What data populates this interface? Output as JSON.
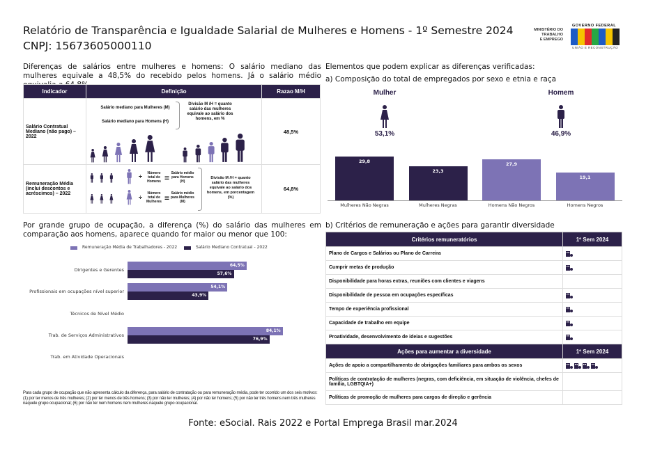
{
  "header": {
    "title": "Relatório de Transparência e Igualdade Salarial de Mulheres e Homens - 1º Semestre 2024",
    "cnpj": "CNPJ: 15673605000110",
    "logo": {
      "ministry_line1": "MINISTÉRIO DO",
      "ministry_line2": "TRABALHO",
      "ministry_line3": "E EMPREGO",
      "gov": "GOVERNO FEDERAL",
      "brand": "BRASIL",
      "tagline": "UNIÃO E RECONSTRUÇÃO"
    }
  },
  "colors": {
    "dark": "#2c2149",
    "light": "#7d73b5"
  },
  "left": {
    "intro": "Diferenças de salários entre mulheres e homens: O salário mediano das mulheres equivale a 48,5% do recebido pelos homens. Já o salário médio equivalia a 64,8%",
    "table": {
      "headers": [
        "Indicador",
        "Definição",
        "Razao M/H"
      ],
      "rows": [
        {
          "indicator": "Salário Contratual Mediano (não pago) – 2022",
          "def_a": "Salário mediano para Mulheres (M)",
          "def_b": "Salário mediano para Homens (H)",
          "def_c": "Divisão M /H = quanto salário das mulheres equivale ao salário dos homens, em %",
          "ratio": "48,5%"
        },
        {
          "indicator": "Remuneração Média (inclui descontos e acréscimos) – 2022",
          "men_total": "Número total de Homens",
          "men_avg": "Salário médio para Homens (H)",
          "women_total": "Número total de Mulheres",
          "women_avg": "Salário médio para Mulheres (M)",
          "def_c": "Divisão M /H = quanto salário das mulheres equivale ao salário dos homens, em porcentagem (%)",
          "ratio": "64,8%"
        }
      ]
    },
    "occupation_intro": "Por grande grupo de ocupação, a diferença (%) do salário das mulheres em comparação aos homens, aparece quando for maior ou menor que 100:",
    "note": "Para cada grupo de ocupação que não apresenta cálculo da diferença, para salário de contratação ou para remuneração média, pode ter ocorrido um dos seis motivos:(1) por ter menos de três mulheres; (2) por ter menos de três homens; (3) por não ter mulheres; (4) por não ter homens; (5) por não ter três homens nem três mulheres naquele grupo ocupacional; (6) por não ter nem homens nem mulheres naquele grupo ocupacional."
  },
  "right": {
    "intro": "Elementos que podem explicar as diferenças verificadas:",
    "subtitle_a": "a) Composição do total de empregados por sexo e etnia e raça",
    "women_label": "Mulher",
    "women_pct": "53,1%",
    "men_label": "Homem",
    "men_pct": "46,9%",
    "subtitle_b": "b) Critérios de remuneração e ações para garantir diversidade",
    "criteria": {
      "header": [
        "Critérios remuneratórios",
        "1º Sem 2024"
      ],
      "rows": [
        {
          "label": "Plano de Cargos e Salários ou Plano de Carreira",
          "icons": 1
        },
        {
          "label": "Cumprir metas de produção",
          "icons": 1
        },
        {
          "label": "Disponibilidade para horas extras, reuniões com clientes e viagens",
          "icons": 0
        },
        {
          "label": "Disponibilidade de pessoa em ocupações específicas",
          "icons": 1
        },
        {
          "label": "Tempo de experiência profissional",
          "icons": 1
        },
        {
          "label": "Capacidade de trabalho em equipe",
          "icons": 1
        },
        {
          "label": "Proatividade, desenvolvimento de ideias e sugestões",
          "icons": 1
        }
      ]
    },
    "actions": {
      "header": [
        "Ações para aumentar a diversidade",
        "1º Sem 2024"
      ],
      "rows": [
        {
          "label": "Ações de apoio a compartilhamento de obrigações familiares para ambos os sexos",
          "icons": 4
        },
        {
          "label": "Políticas de contratação de mulheres (negras, com deficiência, em situação de violência, chefes de família, LGBTQIA+)",
          "icons": 0
        },
        {
          "label": "Políticas de promoção de mulheres para cargos de direção e gerência",
          "icons": 0
        }
      ]
    }
  },
  "chart_data": [
    {
      "type": "bar",
      "title": "Composição do total de empregados por sexo e etnia e raça",
      "categories": [
        "Mulheres Não Negras",
        "Mulheres Negras",
        "Homens Não Negros",
        "Homens Negros"
      ],
      "values": [
        29.8,
        23.3,
        27.9,
        19.1
      ],
      "labels": [
        "29,8",
        "23,3",
        "27,9",
        "19,1"
      ],
      "ylim": [
        0,
        32
      ]
    },
    {
      "type": "bar",
      "orientation": "horizontal",
      "categories": [
        "Dirigentes e Gerentes",
        "Profissionais em ocupações nível superior",
        "Técnicos de Nível Médio",
        "Trab. de Serviços Administrativos",
        "Trab. em Atividade Operacionais"
      ],
      "series": [
        {
          "name": "Remuneração Média de Trabalhadores - 2022",
          "values": [
            64.5,
            54.1,
            null,
            84.1,
            null
          ],
          "labels": [
            "64,5%",
            "54,1%",
            "",
            "84,1%",
            ""
          ]
        },
        {
          "name": "Salário Mediano Contratual - 2022",
          "values": [
            57.6,
            43.9,
            null,
            76.9,
            null
          ],
          "labels": [
            "57,6%",
            "43,9%",
            "",
            "76,9%",
            ""
          ]
        }
      ],
      "legend": "top",
      "xlim": [
        0,
        100
      ]
    }
  ],
  "footer": {
    "source": "Fonte: eSocial. Rais 2022 e Portal Emprega Brasil mar.2024"
  }
}
